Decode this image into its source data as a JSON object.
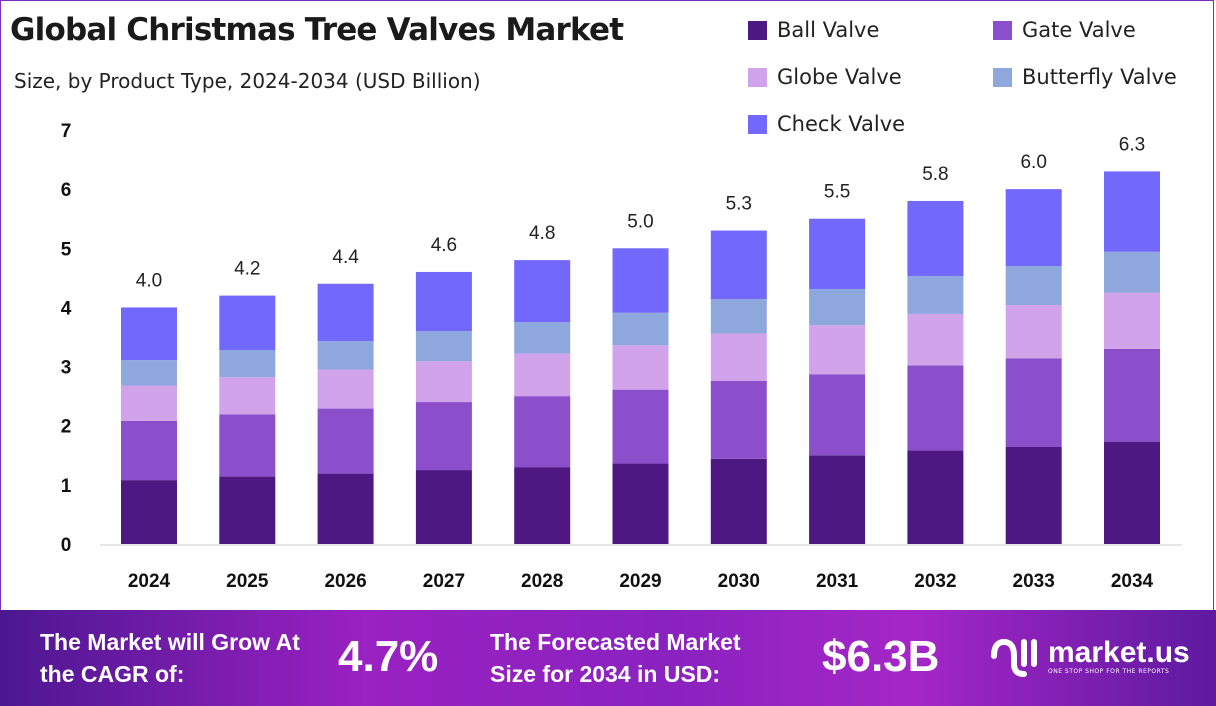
{
  "chart_data": {
    "type": "bar",
    "stacked": true,
    "title": "Global Christmas Tree Valves Market",
    "subtitle": "Size, by Product Type, 2024-2034 (USD Billion)",
    "xlabel": "",
    "ylabel": "",
    "ylim": [
      0,
      7
    ],
    "yticks": [
      "0",
      "1",
      "2",
      "3",
      "4",
      "5",
      "6",
      "7"
    ],
    "grid": false,
    "legend_position": "top-right",
    "categories": [
      "2024",
      "2025",
      "2026",
      "2027",
      "2028",
      "2029",
      "2030",
      "2031",
      "2032",
      "2033",
      "2034"
    ],
    "totals": [
      "4.0",
      "4.2",
      "4.4",
      "4.6",
      "4.8",
      "5.0",
      "5.3",
      "5.5",
      "5.8",
      "6.0",
      "6.3"
    ],
    "series": [
      {
        "name": "Ball Valve",
        "color": "#4e1883",
        "values": [
          1.08,
          1.14,
          1.19,
          1.25,
          1.3,
          1.36,
          1.44,
          1.5,
          1.58,
          1.64,
          1.73
        ]
      },
      {
        "name": "Gate Valve",
        "color": "#8b4fcc",
        "values": [
          1.0,
          1.05,
          1.1,
          1.15,
          1.2,
          1.25,
          1.32,
          1.37,
          1.44,
          1.5,
          1.57
        ]
      },
      {
        "name": "Globe Valve",
        "color": "#d1a3ea",
        "values": [
          0.6,
          0.63,
          0.66,
          0.69,
          0.72,
          0.75,
          0.8,
          0.83,
          0.87,
          0.9,
          0.95
        ]
      },
      {
        "name": "Butterfly Valve",
        "color": "#8ea7dc",
        "values": [
          0.43,
          0.46,
          0.48,
          0.51,
          0.53,
          0.55,
          0.58,
          0.61,
          0.64,
          0.66,
          0.69
        ]
      },
      {
        "name": "Check Valve",
        "color": "#7268fc",
        "values": [
          0.89,
          0.92,
          0.97,
          1.0,
          1.05,
          1.09,
          1.16,
          1.19,
          1.27,
          1.3,
          1.36
        ]
      }
    ]
  },
  "footer": {
    "cagr_label": "The Market will Grow At the CAGR of:",
    "cagr_value": "4.7%",
    "forecast_label": "The Forecasted Market Size for 2034 in USD:",
    "forecast_value": "$6.3B",
    "logo_name": "market.us",
    "logo_tagline": "ONE STOP SHOP FOR THE REPORTS"
  }
}
